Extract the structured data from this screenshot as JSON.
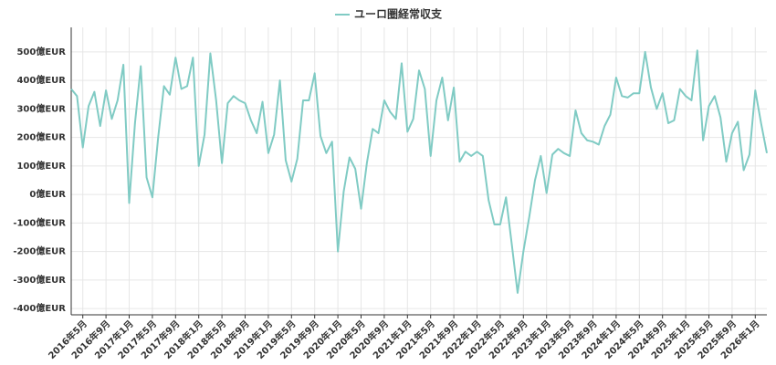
{
  "chart_data": {
    "type": "line",
    "series": [
      {
        "name": "ユーロ圏経常収支",
        "color": "#80cbc4",
        "values": [
          370,
          345,
          165,
          310,
          360,
          240,
          365,
          265,
          330,
          455,
          -30,
          250,
          450,
          60,
          -10,
          200,
          380,
          350,
          480,
          370,
          380,
          480,
          100,
          210,
          495,
          330,
          110,
          320,
          345,
          330,
          320,
          260,
          215,
          325,
          145,
          210,
          400,
          120,
          45,
          125,
          330,
          330,
          425,
          205,
          145,
          185,
          -200,
          10,
          130,
          90,
          -50,
          110,
          230,
          215,
          330,
          290,
          265,
          460,
          220,
          265,
          435,
          370,
          135,
          330,
          410,
          260,
          375,
          115,
          150,
          135,
          150,
          135,
          -20,
          -105,
          -105,
          -10,
          -175,
          -345,
          -200,
          -80,
          50,
          135,
          5,
          140,
          160,
          145,
          135,
          295,
          215,
          190,
          185,
          175,
          240,
          280,
          410,
          345,
          340,
          355,
          355,
          500,
          375,
          300,
          355,
          250,
          260,
          370,
          345,
          330,
          505,
          190,
          310,
          345,
          270,
          115,
          215,
          255,
          85,
          140,
          365,
          250,
          145
        ]
      }
    ],
    "categories": [
      null,
      null,
      "2016年5月",
      null,
      null,
      null,
      "2016年9月",
      null,
      null,
      null,
      "2017年1月",
      null,
      null,
      null,
      "2017年5月",
      null,
      null,
      null,
      "2017年9月",
      null,
      null,
      null,
      "2018年1月",
      null,
      null,
      null,
      "2018年5月",
      null,
      null,
      null,
      "2018年9月",
      null,
      null,
      null,
      "2019年1月",
      null,
      null,
      null,
      "2019年5月",
      null,
      null,
      null,
      "2019年9月",
      null,
      null,
      null,
      "2020年1月",
      null,
      null,
      null,
      "2020年5月",
      null,
      null,
      null,
      "2020年9月",
      null,
      null,
      null,
      "2021年1月",
      null,
      null,
      null,
      "2021年5月",
      null,
      null,
      null,
      "2021年9月",
      null,
      null,
      null,
      "2022年1月",
      null,
      null,
      null,
      "2022年5月",
      null,
      null,
      null,
      "2022年9月",
      null,
      null,
      null,
      "2023年1月",
      null,
      null,
      null,
      "2023年5月",
      null,
      null,
      null,
      "2023年9月",
      null,
      null,
      null,
      "2024年1月",
      null,
      null,
      null,
      "2024年5月",
      null,
      null,
      null,
      "2024年9月",
      null,
      null,
      null,
      "2025年1月",
      null,
      null,
      null,
      "2025年5月",
      null,
      null,
      null,
      "2025年9月",
      null,
      null,
      null,
      "2026年1月",
      null,
      null
    ],
    "ylim": [
      -422,
      586
    ],
    "yticks": [
      {
        "value": -400,
        "label": "-400億EUR"
      },
      {
        "value": -300,
        "label": "-300億EUR"
      },
      {
        "value": -200,
        "label": "-200億EUR"
      },
      {
        "value": -100,
        "label": "-100億EUR"
      },
      {
        "value": 0,
        "label": "0億EUR"
      },
      {
        "value": 100,
        "label": "100億EUR"
      },
      {
        "value": 200,
        "label": "200億EUR"
      },
      {
        "value": 300,
        "label": "300億EUR"
      },
      {
        "value": 400,
        "label": "400億EUR"
      },
      {
        "value": 500,
        "label": "500億EUR"
      }
    ],
    "grid": true,
    "legend": "top"
  }
}
